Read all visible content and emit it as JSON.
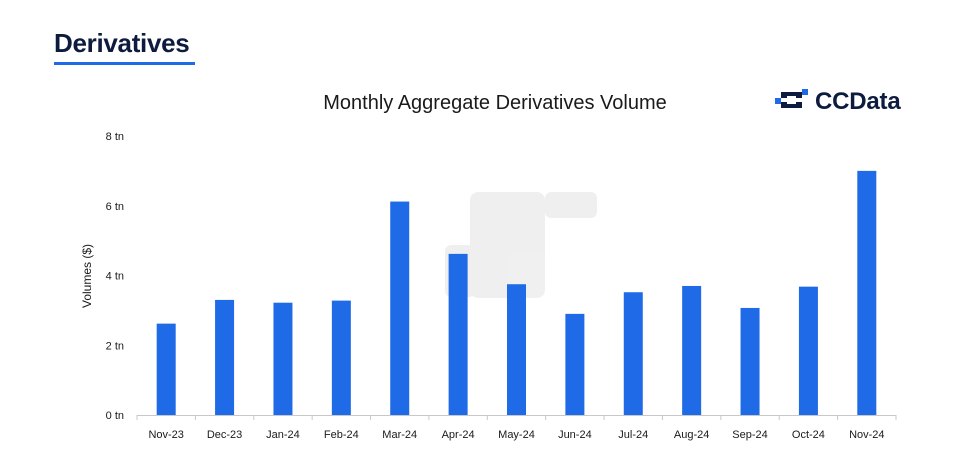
{
  "header": {
    "section_title": "Derivatives",
    "accent_color": "#1f6ae6"
  },
  "logo": {
    "text": "CCData",
    "icon": "ccdata-logo-icon"
  },
  "chart_data": {
    "type": "bar",
    "title": "Monthly Aggregate Derivatives Volume",
    "xlabel": "",
    "ylabel": "Volumes ($)",
    "ylim": [
      0,
      8
    ],
    "yticks": [
      {
        "value": 0,
        "label": "0 tn"
      },
      {
        "value": 2,
        "label": "2 tn"
      },
      {
        "value": 4,
        "label": "4 tn"
      },
      {
        "value": 6,
        "label": "6 tn"
      },
      {
        "value": 8,
        "label": "8 tn"
      }
    ],
    "categories": [
      "Nov-23",
      "Dec-23",
      "Jan-24",
      "Feb-24",
      "Mar-24",
      "Apr-24",
      "May-24",
      "Jun-24",
      "Jul-24",
      "Aug-24",
      "Sep-24",
      "Oct-24",
      "Nov-24"
    ],
    "values": [
      2.62,
      3.3,
      3.22,
      3.28,
      6.12,
      4.62,
      3.75,
      2.9,
      3.52,
      3.7,
      3.07,
      3.68,
      7.0
    ],
    "bar_color": "#1f6ae6",
    "grid": false
  }
}
